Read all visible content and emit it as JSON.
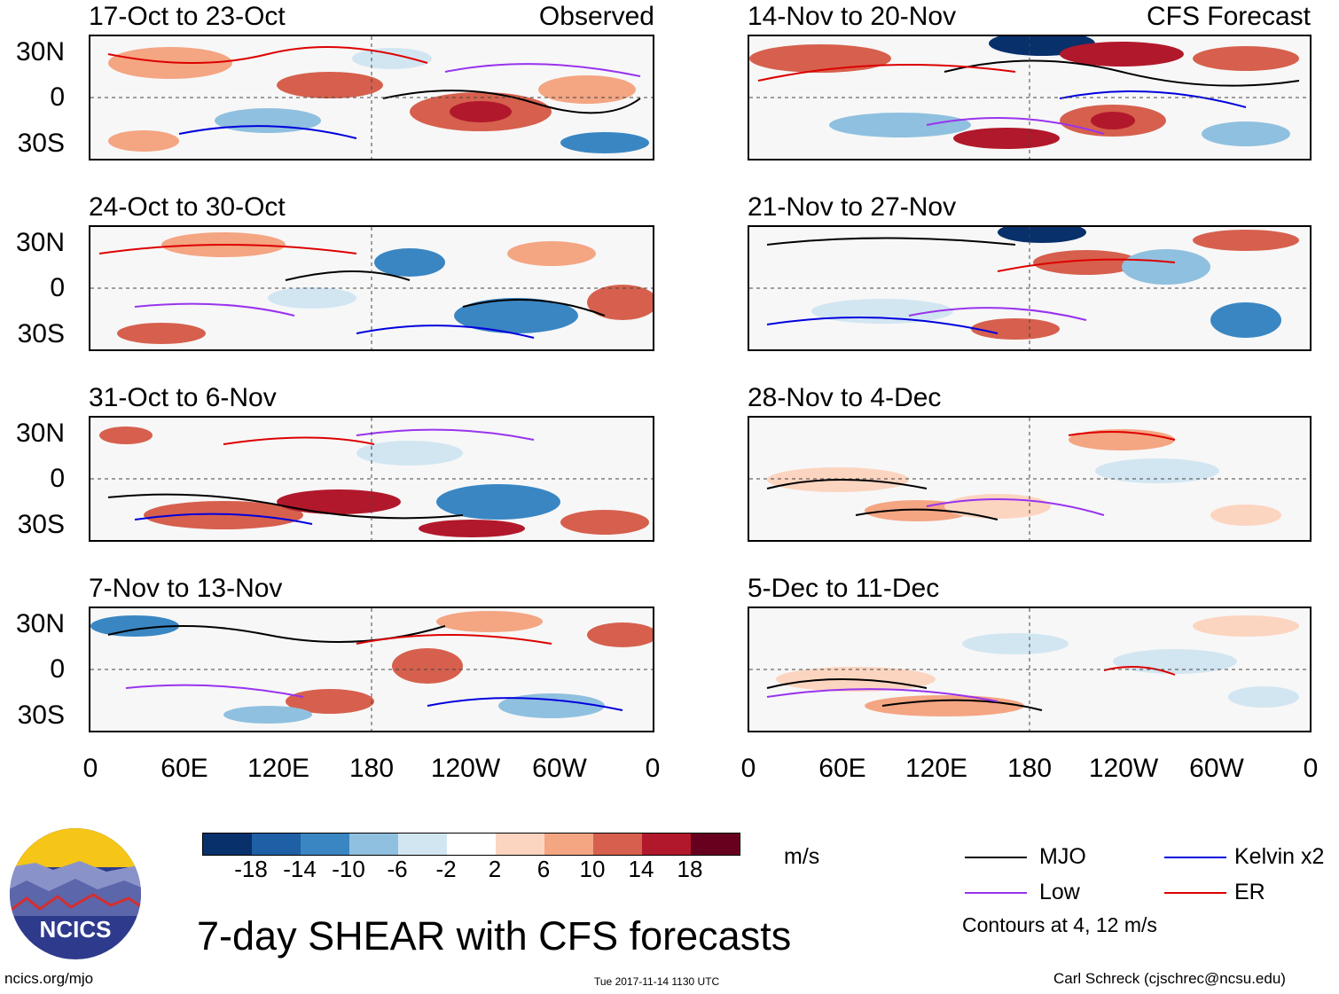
{
  "panels": [
    {
      "title": "17-Oct to 23-Oct",
      "tag": "Observed"
    },
    {
      "title": "24-Oct to 30-Oct",
      "tag": ""
    },
    {
      "title": "31-Oct to 6-Nov",
      "tag": ""
    },
    {
      "title": "7-Nov to 13-Nov",
      "tag": ""
    },
    {
      "title": "14-Nov to 20-Nov",
      "tag": "CFS Forecast"
    },
    {
      "title": "21-Nov to 27-Nov",
      "tag": ""
    },
    {
      "title": "28-Nov to 4-Dec",
      "tag": ""
    },
    {
      "title": "5-Dec to 11-Dec",
      "tag": ""
    }
  ],
  "lat_labels": [
    "30N",
    "0",
    "30S"
  ],
  "lon_labels": [
    "0",
    "60E",
    "120E",
    "180",
    "120W",
    "60W",
    "0"
  ],
  "colorbar": {
    "labels": [
      "-18",
      "-14",
      "-10",
      "-6",
      "-2",
      "2",
      "6",
      "10",
      "14",
      "18"
    ],
    "colors": [
      "#08306b",
      "#1f5fa6",
      "#3a86c3",
      "#8fc0df",
      "#d2e6f2",
      "#ffffff",
      "#fcd5c0",
      "#f4a582",
      "#d6604d",
      "#b2182b",
      "#67001f"
    ],
    "unit": "m/s"
  },
  "legend": {
    "items": [
      {
        "label": "MJO",
        "color": "#000000"
      },
      {
        "label": "Kelvin x2",
        "color": "#0000dd"
      },
      {
        "label": "Low",
        "color": "#9933ee"
      },
      {
        "label": "ER",
        "color": "#dd0000"
      }
    ],
    "note": "Contours at 4, 12 m/s"
  },
  "title": "7-day SHEAR with CFS forecasts",
  "logo_text": "NCICS",
  "footer": {
    "left": "ncics.org/mjo",
    "center": "Tue 2017-11-14 1130 UTC",
    "right": "Carl Schreck (cjschrec@ncsu.edu)"
  }
}
